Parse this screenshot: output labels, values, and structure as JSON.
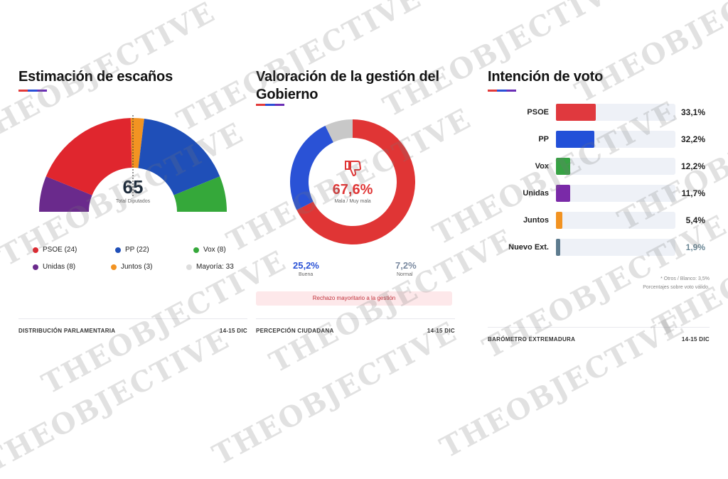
{
  "seats": {
    "title": "Estimación de escaños",
    "total": "65",
    "total_label": "Total Diputados",
    "legend": [
      {
        "label": "PSOE (24)",
        "color": "#e0262e"
      },
      {
        "label": "PP (22)",
        "color": "#1f4fb8"
      },
      {
        "label": "Vox (8)",
        "color": "#35a83a"
      },
      {
        "label": "Unidas (8)",
        "color": "#6a2a8c"
      },
      {
        "label": "Juntos (3)",
        "color": "#f29322"
      },
      {
        "label": "Mayoría: 33",
        "color": "#dddddd"
      }
    ],
    "footer_left": "DISTRIBUCIÓN PARLAMENTARIA",
    "footer_right": "14-15 DIC"
  },
  "gov": {
    "title": "Valoración de la gestión del Gobierno",
    "main_value": "67,6%",
    "main_label": "Mala / Muy mala",
    "good_value": "25,2%",
    "good_label": "Buena",
    "normal_value": "7,2%",
    "normal_label": "Normal",
    "banner": "Rechazo mayoritario a la gestión",
    "footer_left": "PERCEPCIÓN CIUDADANA",
    "footer_right": "14-15 DIC"
  },
  "vote": {
    "title": "Intención de voto",
    "note1": "* Otros / Blanco: 3,5%",
    "note2": "Porcentajes sobre voto válido.",
    "footer_left": "BARÓMETRO EXTREMADURA",
    "footer_right": "14-15 DIC"
  },
  "watermark_text": "THEOBJECTIVE",
  "chart_data": [
    {
      "type": "pie",
      "categories": [
        "PSOE",
        "PP",
        "Vox",
        "Unidas",
        "Juntos"
      ],
      "values": [
        24,
        22,
        8,
        8,
        3
      ],
      "colors": [
        "#e0262e",
        "#1f4fb8",
        "#35a83a",
        "#6a2a8c",
        "#f29322"
      ],
      "order": [
        "Unidas",
        "PSOE",
        "Juntos",
        "PP",
        "Vox"
      ],
      "title": "Estimación de escaños"
    },
    {
      "type": "pie",
      "categories": [
        "Mala / Muy mala",
        "Buena",
        "Normal"
      ],
      "values": [
        67.6,
        25.2,
        7.2
      ],
      "colors": [
        "#e03535",
        "#2a52d6",
        "#c8c8c8"
      ],
      "title": "Valoración de la gestión del Gobierno"
    },
    {
      "type": "bar",
      "categories": [
        "PSOE",
        "PP",
        "Vox",
        "Unidas",
        "Juntos",
        "Nuevo Ext."
      ],
      "values": [
        33.1,
        32.2,
        12.2,
        11.7,
        5.4,
        1.9
      ],
      "value_labels": [
        "33,1%",
        "32,2%",
        "12,2%",
        "11,7%",
        "5,4%",
        "1,9%"
      ],
      "colors": [
        "#e0393e",
        "#2250d8",
        "#37a244",
        "#7a2aa8",
        "#f29322",
        "#5d7b8e"
      ],
      "title": "Intención de voto",
      "xlim": [
        0,
        100
      ]
    }
  ]
}
